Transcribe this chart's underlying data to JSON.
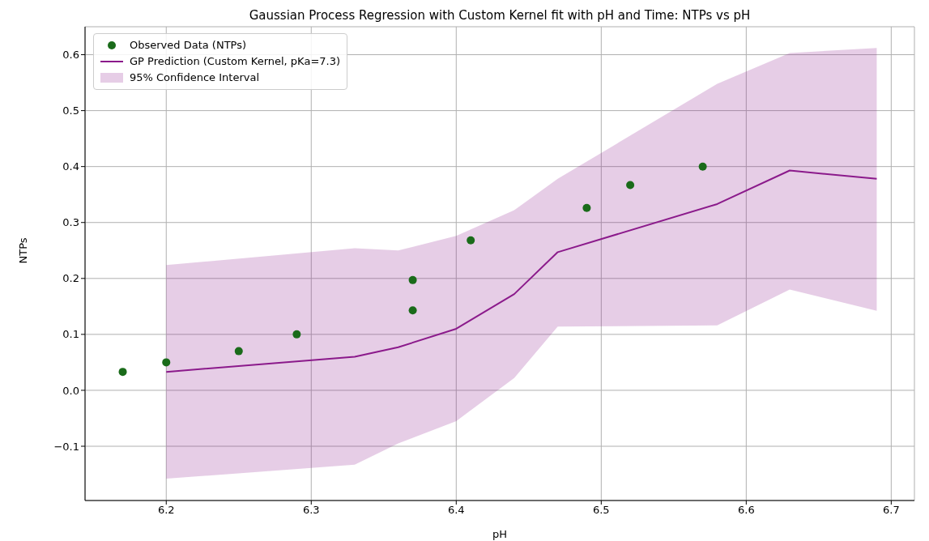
{
  "chart_data": {
    "type": "line",
    "title": "Gaussian Process Regression with Custom Kernel fit with pH and Time: NTPs vs pH",
    "xlabel": "pH",
    "ylabel": "NTPs",
    "xlim": [
      6.144,
      6.716
    ],
    "ylim": [
      -0.197,
      0.65
    ],
    "xticks": [
      6.2,
      6.3,
      6.4,
      6.5,
      6.6,
      6.7
    ],
    "yticks": [
      -0.1,
      {
        "value": 0,
        "label": "0.0"
      },
      0.1,
      0.2,
      0.3,
      0.4,
      0.5,
      0.6
    ],
    "grid": true,
    "legend": "top left",
    "annotations": [
      "95% Confidence Interval"
    ],
    "series": [
      {
        "type": "scatter",
        "name": "Observed Data (NTPs)",
        "color": "#1a6b1a",
        "marker": "circle",
        "x": [
          6.17,
          6.2,
          6.25,
          6.29,
          6.37,
          6.37,
          6.41,
          6.49,
          6.52,
          6.57
        ],
        "values": [
          0.033,
          0.05,
          0.07,
          0.1,
          0.197,
          0.143,
          0.268,
          0.326,
          0.367,
          0.4
        ]
      },
      {
        "type": "line",
        "name": "GP Prediction (Custom Kernel, pKa=7.3)",
        "color": "#8b1a8b",
        "line_style": "solid",
        "x": [
          6.2,
          6.33,
          6.36,
          6.4,
          6.44,
          6.47,
          6.58,
          6.63,
          6.69
        ],
        "values": [
          0.033,
          0.06,
          0.077,
          0.11,
          0.172,
          0.247,
          0.333,
          0.393,
          0.378
        ],
        "lower": [
          -0.158,
          -0.133,
          -0.095,
          -0.055,
          0.022,
          0.114,
          0.116,
          0.18,
          0.142
        ],
        "upper": [
          0.224,
          0.254,
          0.25,
          0.276,
          0.322,
          0.378,
          0.548,
          0.603,
          0.612
        ]
      }
    ]
  }
}
